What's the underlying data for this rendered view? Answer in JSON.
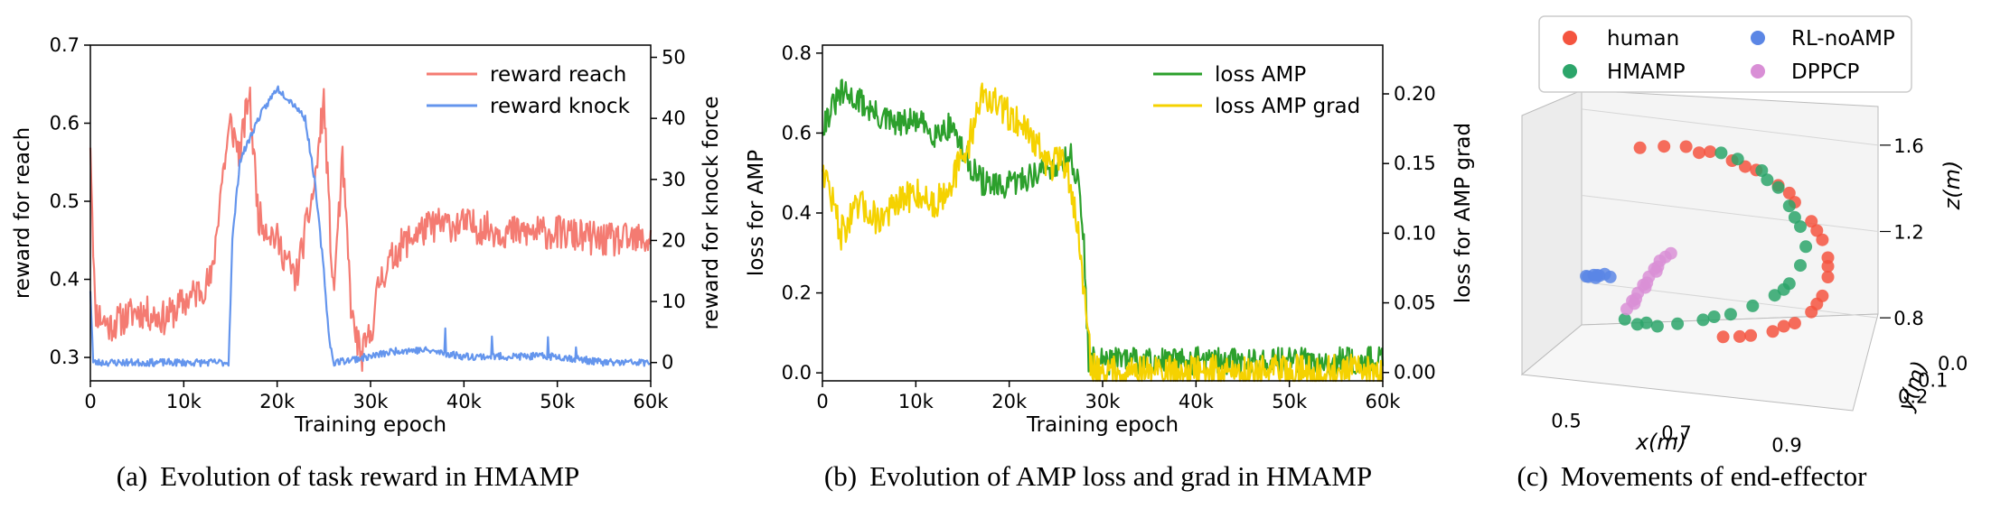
{
  "colors": {
    "reach": "#f47b72",
    "knock": "#6495ed",
    "amp": "#2ca02c",
    "grad": "#f5d200",
    "human": "#f4543f",
    "hmamp": "#2ca56a",
    "rl": "#5b86e5",
    "dppcp": "#d98fd6"
  },
  "chart_data": [
    {
      "id": "a",
      "type": "line",
      "caption_label": "(a)",
      "caption_text": "Evolution of task reward in HMAMP",
      "xlabel": "Training epoch",
      "ylabel": "reward for reach",
      "y2label": "reward for knock force",
      "xlim": [
        0,
        60000
      ],
      "ylim": [
        0.27,
        0.7
      ],
      "y2lim": [
        -3,
        52
      ],
      "xticks": [
        "0",
        "10k",
        "20k",
        "30k",
        "40k",
        "50k",
        "60k"
      ],
      "xtick_values": [
        0,
        10000,
        20000,
        30000,
        40000,
        50000,
        60000
      ],
      "yticks": [
        "0.3",
        "0.4",
        "0.5",
        "0.6",
        "0.7"
      ],
      "ytick_values": [
        0.3,
        0.4,
        0.5,
        0.6,
        0.7
      ],
      "y2ticks": [
        "0",
        "10",
        "20",
        "30",
        "40",
        "50"
      ],
      "y2tick_values": [
        0,
        10,
        20,
        30,
        40,
        50
      ],
      "series": [
        {
          "name": "reward reach",
          "axis": "left",
          "color_key": "reach",
          "noise": 0.022,
          "seed": 11,
          "points": [
            [
              0,
              0.58
            ],
            [
              500,
              0.36
            ],
            [
              2000,
              0.34
            ],
            [
              5000,
              0.36
            ],
            [
              8000,
              0.35
            ],
            [
              10000,
              0.37
            ],
            [
              13000,
              0.4
            ],
            [
              14000,
              0.52
            ],
            [
              15000,
              0.6
            ],
            [
              16000,
              0.56
            ],
            [
              17000,
              0.64
            ],
            [
              18000,
              0.48
            ],
            [
              20000,
              0.45
            ],
            [
              22000,
              0.4
            ],
            [
              24000,
              0.52
            ],
            [
              25000,
              0.63
            ],
            [
              26000,
              0.38
            ],
            [
              27000,
              0.55
            ],
            [
              28000,
              0.35
            ],
            [
              29000,
              0.3
            ],
            [
              30000,
              0.33
            ],
            [
              31000,
              0.4
            ],
            [
              33000,
              0.44
            ],
            [
              35000,
              0.46
            ],
            [
              37000,
              0.47
            ],
            [
              40000,
              0.47
            ],
            [
              45000,
              0.46
            ],
            [
              50000,
              0.46
            ],
            [
              55000,
              0.45
            ],
            [
              60000,
              0.45
            ]
          ]
        },
        {
          "name": "reward knock",
          "axis": "right",
          "color_key": "knock",
          "noise": 0.6,
          "seed": 23,
          "points": [
            [
              0,
              12
            ],
            [
              300,
              0
            ],
            [
              14800,
              0
            ],
            [
              15200,
              20
            ],
            [
              16000,
              33
            ],
            [
              18000,
              40
            ],
            [
              20000,
              45
            ],
            [
              22000,
              42
            ],
            [
              23000,
              40
            ],
            [
              24000,
              30
            ],
            [
              25000,
              15
            ],
            [
              25500,
              5
            ],
            [
              26000,
              0
            ],
            [
              30000,
              1
            ],
            [
              33000,
              2
            ],
            [
              36000,
              2
            ],
            [
              40000,
              1
            ],
            [
              45000,
              1
            ],
            [
              50000,
              1
            ],
            [
              55000,
              0
            ],
            [
              60000,
              0
            ]
          ],
          "spikes": [
            [
              38000,
              4
            ],
            [
              43000,
              3
            ],
            [
              49000,
              3
            ],
            [
              52000,
              2
            ]
          ]
        }
      ],
      "legend": [
        "reward reach",
        "reward knock"
      ],
      "legend_position": "top-right"
    },
    {
      "id": "b",
      "type": "line",
      "caption_label": "(b)",
      "caption_text": "Evolution of AMP loss and grad in HMAMP",
      "xlabel": "Training epoch",
      "ylabel": "loss for AMP",
      "y2label": "loss for AMP grad",
      "xlim": [
        0,
        60000
      ],
      "ylim": [
        -0.02,
        0.82
      ],
      "y2lim": [
        -0.006,
        0.235
      ],
      "xticks": [
        "0",
        "10k",
        "20k",
        "30k",
        "40k",
        "50k",
        "60k"
      ],
      "xtick_values": [
        0,
        10000,
        20000,
        30000,
        40000,
        50000,
        60000
      ],
      "yticks": [
        "0.0",
        "0.2",
        "0.4",
        "0.6",
        "0.8"
      ],
      "ytick_values": [
        0.0,
        0.2,
        0.4,
        0.6,
        0.8
      ],
      "y2ticks": [
        "0.00",
        "0.05",
        "0.10",
        "0.15",
        "0.20"
      ],
      "y2tick_values": [
        0.0,
        0.05,
        0.1,
        0.15,
        0.2
      ],
      "series": [
        {
          "name": "loss AMP",
          "axis": "left",
          "color_key": "amp",
          "noise": 0.035,
          "seed": 31,
          "points": [
            [
              0,
              0.62
            ],
            [
              2000,
              0.7
            ],
            [
              4000,
              0.68
            ],
            [
              6000,
              0.64
            ],
            [
              8000,
              0.62
            ],
            [
              10000,
              0.63
            ],
            [
              12000,
              0.6
            ],
            [
              14000,
              0.62
            ],
            [
              15000,
              0.55
            ],
            [
              17000,
              0.48
            ],
            [
              19000,
              0.46
            ],
            [
              21000,
              0.48
            ],
            [
              23000,
              0.5
            ],
            [
              25000,
              0.52
            ],
            [
              26500,
              0.55
            ],
            [
              27500,
              0.46
            ],
            [
              28000,
              0.32
            ],
            [
              28500,
              0.03
            ],
            [
              30000,
              0.03
            ],
            [
              40000,
              0.03
            ],
            [
              50000,
              0.03
            ],
            [
              60000,
              0.03
            ]
          ]
        },
        {
          "name": "loss AMP grad",
          "axis": "right",
          "color_key": "grad",
          "noise": 0.012,
          "seed": 47,
          "points": [
            [
              0,
              0.15
            ],
            [
              2000,
              0.1
            ],
            [
              4000,
              0.12
            ],
            [
              6000,
              0.11
            ],
            [
              8000,
              0.12
            ],
            [
              10000,
              0.13
            ],
            [
              12000,
              0.12
            ],
            [
              14000,
              0.14
            ],
            [
              15500,
              0.16
            ],
            [
              17000,
              0.2
            ],
            [
              19000,
              0.19
            ],
            [
              21000,
              0.18
            ],
            [
              22500,
              0.17
            ],
            [
              24000,
              0.15
            ],
            [
              26000,
              0.15
            ],
            [
              27000,
              0.12
            ],
            [
              28000,
              0.06
            ],
            [
              28800,
              0.002
            ],
            [
              30000,
              0.001
            ],
            [
              40000,
              0.001
            ],
            [
              50000,
              0.001
            ],
            [
              60000,
              0.001
            ]
          ]
        }
      ],
      "legend": [
        "loss AMP",
        "loss AMP grad"
      ],
      "legend_position": "top-right"
    },
    {
      "id": "c",
      "type": "scatter",
      "projection": "3d",
      "caption_label": "(c)",
      "caption_text": "Movements of end-effector",
      "xlabel": "x(m)",
      "ylabel": "y(m)",
      "zlabel": "z(m)",
      "xticks": [
        "0.5",
        "0.7",
        "0.9"
      ],
      "xtick_values": [
        0.5,
        0.7,
        0.9
      ],
      "yticks": [
        "0.0",
        "0.1",
        "0.2"
      ],
      "ytick_values": [
        0.0,
        0.1,
        0.2
      ],
      "zticks": [
        "0.8",
        "1.2",
        "1.6"
      ],
      "ztick_values": [
        0.8,
        1.2,
        1.6
      ],
      "legend": [
        "human",
        "HMAMP",
        "RL-noAMP",
        "DPPCP"
      ],
      "legend_position": "top",
      "series": [
        {
          "name": "human",
          "color_key": "human",
          "points": [
            [
              0.56,
              0.15,
              1.58
            ],
            [
              0.6,
              0.14,
              1.59
            ],
            [
              0.64,
              0.14,
              1.6
            ],
            [
              0.68,
              0.13,
              1.58
            ],
            [
              0.72,
              0.13,
              1.55
            ],
            [
              0.76,
              0.12,
              1.51
            ],
            [
              0.8,
              0.12,
              1.45
            ],
            [
              0.83,
              0.12,
              1.38
            ],
            [
              0.86,
              0.12,
              1.3
            ],
            [
              0.88,
              0.12,
              1.22
            ],
            [
              0.89,
              0.12,
              1.14
            ],
            [
              0.89,
              0.12,
              1.05
            ],
            [
              0.88,
              0.12,
              0.96
            ],
            [
              0.86,
              0.12,
              0.88
            ],
            [
              0.83,
              0.12,
              0.82
            ],
            [
              0.79,
              0.12,
              0.77
            ],
            [
              0.75,
              0.12,
              0.74
            ],
            [
              0.7,
              0.12,
              0.72
            ],
            [
              0.66,
              0.13,
              1.57
            ],
            [
              0.74,
              0.12,
              1.52
            ],
            [
              0.82,
              0.12,
              1.42
            ],
            [
              0.87,
              0.12,
              1.26
            ],
            [
              0.89,
              0.12,
              1.1
            ],
            [
              0.87,
              0.12,
              0.92
            ],
            [
              0.81,
              0.12,
              0.8
            ],
            [
              0.73,
              0.12,
              0.73
            ]
          ]
        },
        {
          "name": "HMAMP",
          "color_key": "hmamp",
          "points": [
            [
              0.7,
              0.13,
              1.58
            ],
            [
              0.73,
              0.13,
              1.56
            ],
            [
              0.77,
              0.12,
              1.51
            ],
            [
              0.8,
              0.12,
              1.44
            ],
            [
              0.82,
              0.12,
              1.36
            ],
            [
              0.84,
              0.12,
              1.27
            ],
            [
              0.85,
              0.12,
              1.18
            ],
            [
              0.84,
              0.12,
              1.09
            ],
            [
              0.82,
              0.12,
              1.0
            ],
            [
              0.79,
              0.11,
              0.93
            ],
            [
              0.75,
              0.11,
              0.87
            ],
            [
              0.71,
              0.11,
              0.82
            ],
            [
              0.66,
              0.11,
              0.78
            ],
            [
              0.61,
              0.1,
              0.74
            ],
            [
              0.57,
              0.09,
              0.71
            ],
            [
              0.53,
              0.08,
              0.7
            ],
            [
              0.5,
              0.06,
              0.7
            ],
            [
              0.78,
              0.12,
              1.47
            ],
            [
              0.83,
              0.12,
              1.31
            ],
            [
              0.81,
              0.12,
              0.97
            ],
            [
              0.68,
              0.11,
              0.8
            ],
            [
              0.55,
              0.09,
              0.72
            ]
          ]
        },
        {
          "name": "RL-noAMP",
          "color_key": "rl",
          "points": [
            [
              0.43,
              0.05,
              0.87
            ],
            [
              0.44,
              0.05,
              0.88
            ],
            [
              0.45,
              0.05,
              0.88
            ],
            [
              0.46,
              0.05,
              0.89
            ],
            [
              0.44,
              0.04,
              0.86
            ],
            [
              0.45,
              0.06,
              0.89
            ],
            [
              0.47,
              0.05,
              0.88
            ],
            [
              0.43,
              0.06,
              0.88
            ]
          ]
        },
        {
          "name": "DPPCP",
          "color_key": "dppcp",
          "points": [
            [
              0.5,
              0.05,
              0.74
            ],
            [
              0.51,
              0.05,
              0.78
            ],
            [
              0.52,
              0.05,
              0.82
            ],
            [
              0.53,
              0.05,
              0.86
            ],
            [
              0.54,
              0.05,
              0.9
            ],
            [
              0.55,
              0.05,
              0.94
            ],
            [
              0.56,
              0.05,
              0.98
            ],
            [
              0.52,
              0.06,
              0.8
            ],
            [
              0.54,
              0.06,
              0.88
            ],
            [
              0.56,
              0.06,
              0.96
            ],
            [
              0.57,
              0.05,
              1.0
            ],
            [
              0.53,
              0.04,
              0.84
            ],
            [
              0.55,
              0.04,
              0.92
            ],
            [
              0.58,
              0.05,
              1.02
            ],
            [
              0.51,
              0.04,
              0.76
            ]
          ]
        }
      ]
    }
  ]
}
